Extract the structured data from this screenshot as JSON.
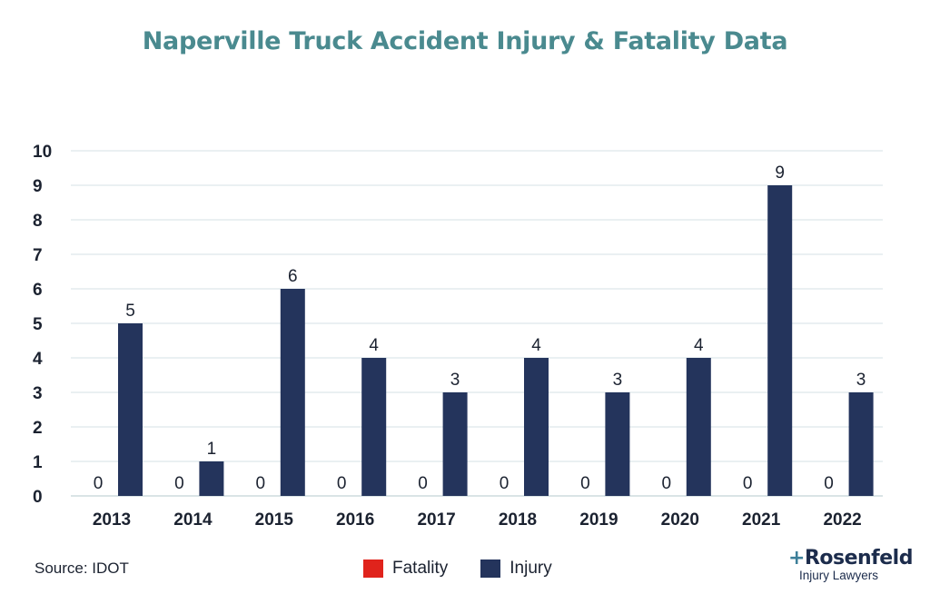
{
  "chart_data": {
    "type": "bar",
    "title": "Naperville Truck Accident Injury & Fatality Data",
    "categories": [
      "2013",
      "2014",
      "2015",
      "2016",
      "2017",
      "2018",
      "2019",
      "2020",
      "2021",
      "2022"
    ],
    "series": [
      {
        "name": "Fatality",
        "color": "#e0231c",
        "values": [
          0,
          0,
          0,
          0,
          0,
          0,
          0,
          0,
          0,
          0
        ]
      },
      {
        "name": "Injury",
        "color": "#24345c",
        "values": [
          5,
          1,
          6,
          4,
          3,
          4,
          3,
          4,
          9,
          3
        ]
      }
    ],
    "yticks": [
      "0",
      "1",
      "2",
      "3",
      "4",
      "5",
      "6",
      "7",
      "8",
      "9",
      "10"
    ],
    "ylim": [
      0,
      10
    ],
    "xlabel": "",
    "ylabel": "",
    "grid": true,
    "legend_position": "bottom-center"
  },
  "footer": {
    "source": "Source: IDOT"
  },
  "logo": {
    "plus": "+",
    "name": "Rosenfeld",
    "subtitle": "Injury Lawyers"
  }
}
